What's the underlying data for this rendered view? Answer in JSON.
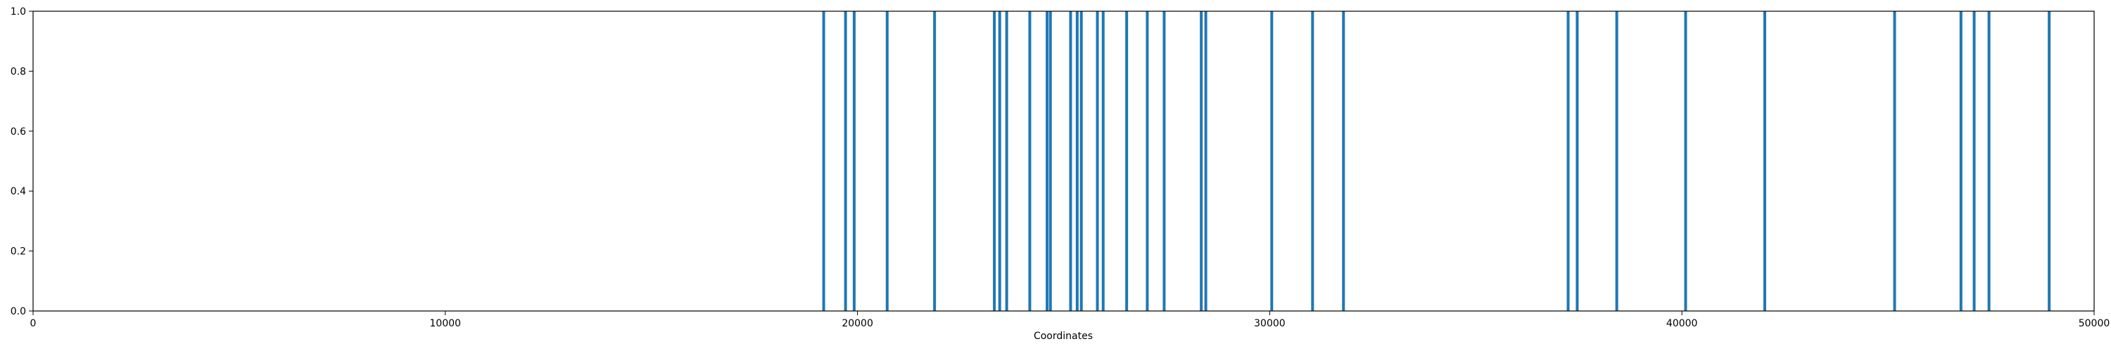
{
  "chart_data": {
    "type": "bar",
    "title": "",
    "xlabel": "Coordinates",
    "ylabel": "",
    "xlim": [
      0,
      50000
    ],
    "ylim": [
      0.0,
      1.0
    ],
    "grid": false,
    "bar_color": "#1f77b4",
    "x_ticks": [
      {
        "value": 0,
        "label": "0"
      },
      {
        "value": 10000,
        "label": "10000"
      },
      {
        "value": 20000,
        "label": "20000"
      },
      {
        "value": 30000,
        "label": "30000"
      },
      {
        "value": 40000,
        "label": "40000"
      },
      {
        "value": 50000,
        "label": "50000"
      }
    ],
    "y_ticks": [
      {
        "value": 0.0,
        "label": "0.0"
      },
      {
        "value": 0.2,
        "label": "0.2"
      },
      {
        "value": 0.4,
        "label": "0.4"
      },
      {
        "value": 0.6,
        "label": "0.6"
      },
      {
        "value": 0.8,
        "label": "0.8"
      },
      {
        "value": 1.0,
        "label": "1.0"
      }
    ],
    "x": [
      19180,
      19710,
      19920,
      20720,
      21870,
      23320,
      23450,
      23620,
      24180,
      24600,
      24680,
      25170,
      25330,
      25430,
      25820,
      25960,
      26530,
      27030,
      27440,
      28340,
      28450,
      30050,
      31040,
      31790,
      37240,
      37460,
      38420,
      40090,
      42010,
      45160,
      46770,
      47090,
      47450,
      48910
    ],
    "values": [
      1,
      1,
      1,
      1,
      1,
      1,
      1,
      1,
      1,
      1,
      1,
      1,
      1,
      1,
      1,
      1,
      1,
      1,
      1,
      1,
      1,
      1,
      1,
      1,
      1,
      1,
      1,
      1,
      1,
      1,
      1,
      1,
      1,
      1
    ]
  }
}
